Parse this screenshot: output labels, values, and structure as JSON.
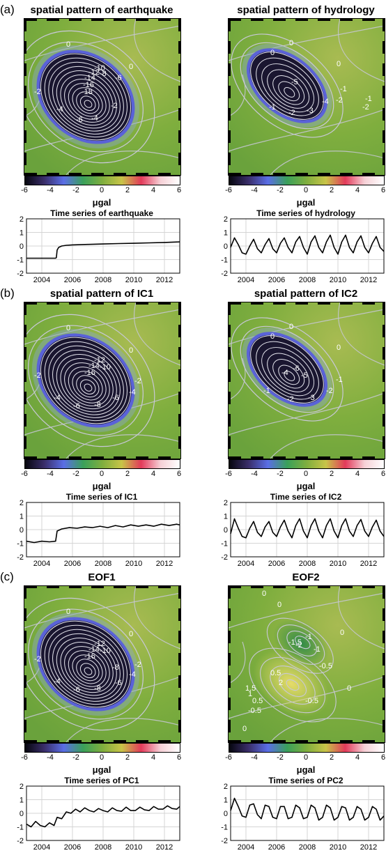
{
  "colors": {
    "map_background": "#7fae3e",
    "ellipse_core": "#1a1630",
    "ellipse_ring": "#5a62d8",
    "contour": "#c8c8d8",
    "eof2_low": "#2f8a48",
    "eof2_high": "#e6dc6a",
    "colorbar_stops": [
      "#06060e",
      "#3a2e6a",
      "#5a6ee6",
      "#3aa05a",
      "#7fae3e",
      "#c8c448",
      "#e23a5a",
      "#f6d0d6",
      "#ffffff"
    ]
  },
  "rows": [
    {
      "label": "(a)",
      "panels": [
        {
          "map_title": "spatial pattern of earthquake",
          "map_contour_labels": [
            "0",
            "0",
            "-2",
            "-4",
            "-6",
            "-4",
            "-2",
            "-16",
            "-14",
            "-18",
            "-12",
            "-10",
            "-8",
            "-6"
          ],
          "colorbar_unit": "μgal",
          "colorbar_ticks": [
            "-6",
            "-4",
            "-2",
            "0",
            "2",
            "4",
            "6"
          ],
          "chart_data": {
            "type": "line",
            "title": "Time series of earthquake",
            "xlim": [
              2003,
              2013
            ],
            "ylim": [
              -2,
              2
            ],
            "xticks": [
              "2004",
              "2006",
              "2008",
              "2010",
              "2012"
            ],
            "yticks": [
              "-2",
              "-1",
              "0",
              "1",
              "2"
            ],
            "grid": true,
            "x": [
              2003.0,
              2004.0,
              2004.9,
              2004.95,
              2005.0,
              2005.1,
              2005.3,
              2005.6,
              2006.0,
              2007.0,
              2008.0,
              2009.0,
              2010.0,
              2011.0,
              2012.0,
              2013.0
            ],
            "y": [
              -0.9,
              -0.9,
              -0.9,
              -0.85,
              -0.3,
              -0.1,
              0.0,
              0.05,
              0.08,
              0.12,
              0.15,
              0.18,
              0.2,
              0.23,
              0.26,
              0.3
            ]
          }
        },
        {
          "map_title": "spatial pattern of hydrology",
          "map_contour_labels": [
            "0",
            "0",
            "0",
            "-1",
            "-2",
            "-3",
            "-4",
            "-2",
            "-1",
            "-2",
            "-1",
            "-5"
          ],
          "colorbar_unit": "μgal",
          "colorbar_ticks": [
            "-6",
            "-4",
            "-2",
            "0",
            "2",
            "4",
            "6"
          ],
          "chart_data": {
            "type": "line",
            "title": "Time series of hydrology",
            "xlim": [
              2003,
              2013
            ],
            "ylim": [
              -2,
              2
            ],
            "xticks": [
              "2004",
              "2006",
              "2008",
              "2010",
              "2012"
            ],
            "yticks": [
              "-2",
              "-1",
              "0",
              "1",
              "2"
            ],
            "grid": true,
            "x": [
              2003.0,
              2003.25,
              2003.5,
              2003.75,
              2004.0,
              2004.25,
              2004.5,
              2004.75,
              2005.0,
              2005.25,
              2005.5,
              2005.75,
              2006.0,
              2006.25,
              2006.5,
              2006.75,
              2007.0,
              2007.25,
              2007.5,
              2007.75,
              2008.0,
              2008.25,
              2008.5,
              2008.75,
              2009.0,
              2009.25,
              2009.5,
              2009.75,
              2010.0,
              2010.25,
              2010.5,
              2010.75,
              2011.0,
              2011.25,
              2011.5,
              2011.75,
              2012.0,
              2012.25,
              2012.5,
              2012.75,
              2013.0
            ],
            "y": [
              -0.1,
              0.6,
              0.1,
              -0.5,
              -0.6,
              0.0,
              0.5,
              -0.2,
              -0.5,
              0.1,
              0.55,
              -0.2,
              -0.5,
              0.2,
              0.6,
              -0.1,
              -0.5,
              0.3,
              0.7,
              -0.1,
              -0.6,
              0.3,
              0.75,
              -0.1,
              -0.5,
              0.3,
              0.8,
              -0.1,
              -0.6,
              0.3,
              0.8,
              -0.1,
              -0.5,
              0.3,
              0.75,
              -0.1,
              -0.5,
              0.2,
              0.7,
              -0.1,
              -0.4
            ]
          }
        }
      ]
    },
    {
      "label": "(b)",
      "panels": [
        {
          "map_title": "spatial pattern of IC1",
          "map_contour_labels": [
            "0",
            "0",
            "-2",
            "-4",
            "-6",
            "-8",
            "-6",
            "-4",
            "-2",
            "-16",
            "-14",
            "-12",
            "-10"
          ],
          "colorbar_unit": "μgal",
          "colorbar_ticks": [
            "-6",
            "-4",
            "-2",
            "0",
            "2",
            "4",
            "6"
          ],
          "chart_data": {
            "type": "line",
            "title": "Time series of IC1",
            "xlim": [
              2003,
              2013
            ],
            "ylim": [
              -2,
              2
            ],
            "xticks": [
              "2004",
              "2006",
              "2008",
              "2010",
              "2012"
            ],
            "yticks": [
              "-2",
              "-1",
              "0",
              "1",
              "2"
            ],
            "grid": true,
            "x": [
              2003.0,
              2003.5,
              2004.0,
              2004.5,
              2004.9,
              2005.0,
              2005.3,
              2005.8,
              2006.3,
              2006.8,
              2007.3,
              2007.8,
              2008.3,
              2008.8,
              2009.3,
              2009.8,
              2010.3,
              2010.8,
              2011.3,
              2011.8,
              2012.3,
              2012.8,
              2013.0
            ],
            "y": [
              -0.85,
              -0.95,
              -0.85,
              -0.9,
              -0.85,
              -0.1,
              0.05,
              0.15,
              0.1,
              0.2,
              0.15,
              0.25,
              0.15,
              0.3,
              0.2,
              0.35,
              0.25,
              0.35,
              0.25,
              0.4,
              0.3,
              0.4,
              0.35
            ]
          }
        },
        {
          "map_title": "spatial pattern of IC2",
          "map_contour_labels": [
            "0",
            "0",
            "0",
            "-1",
            "-2",
            "-3",
            "-2",
            "-1",
            "-4",
            "-6",
            "-5"
          ],
          "colorbar_unit": "μgal",
          "colorbar_ticks": [
            "-6",
            "-4",
            "-2",
            "0",
            "2",
            "4",
            "6"
          ],
          "chart_data": {
            "type": "line",
            "title": "Time series of IC2",
            "xlim": [
              2003,
              2013
            ],
            "ylim": [
              -2,
              2
            ],
            "xticks": [
              "2004",
              "2006",
              "2008",
              "2010",
              "2012"
            ],
            "yticks": [
              "-2",
              "-1",
              "0",
              "1",
              "2"
            ],
            "grid": true,
            "x": [
              2003.0,
              2003.25,
              2003.5,
              2003.75,
              2004.0,
              2004.25,
              2004.5,
              2004.75,
              2005.0,
              2005.25,
              2005.5,
              2005.75,
              2006.0,
              2006.25,
              2006.5,
              2006.75,
              2007.0,
              2007.25,
              2007.5,
              2007.75,
              2008.0,
              2008.25,
              2008.5,
              2008.75,
              2009.0,
              2009.25,
              2009.5,
              2009.75,
              2010.0,
              2010.25,
              2010.5,
              2010.75,
              2011.0,
              2011.25,
              2011.5,
              2011.75,
              2012.0,
              2012.25,
              2012.5,
              2012.75,
              2013.0
            ],
            "y": [
              -0.3,
              0.8,
              0.1,
              -0.5,
              -0.6,
              0.1,
              0.6,
              -0.2,
              -0.5,
              0.2,
              0.6,
              -0.2,
              -0.5,
              0.2,
              0.7,
              -0.1,
              -0.6,
              0.3,
              0.8,
              -0.1,
              -0.6,
              0.3,
              0.8,
              -0.1,
              -0.6,
              0.3,
              0.8,
              -0.1,
              -0.6,
              0.3,
              0.8,
              -0.1,
              -0.5,
              0.3,
              0.75,
              -0.1,
              -0.5,
              0.2,
              0.7,
              -0.1,
              -0.5
            ]
          }
        }
      ]
    },
    {
      "label": "(c)",
      "panels": [
        {
          "map_title": "EOF1",
          "map_contour_labels": [
            "0",
            "0",
            "-2",
            "-4",
            "-6",
            "-8",
            "-6",
            "-4",
            "-2",
            "-16",
            "-14",
            "-12",
            "-10",
            "-8"
          ],
          "colorbar_unit": "μgal",
          "colorbar_ticks": [
            "-6",
            "-4",
            "-2",
            "0",
            "2",
            "4",
            "6"
          ],
          "chart_data": {
            "type": "line",
            "title": "Time series of PC1",
            "xlim": [
              2003,
              2013
            ],
            "ylim": [
              -2,
              2
            ],
            "xticks": [
              "2004",
              "2006",
              "2008",
              "2010",
              "2012"
            ],
            "yticks": [
              "-2",
              "-1",
              "0",
              "1",
              "2"
            ],
            "grid": true,
            "x": [
              2003.0,
              2003.3,
              2003.6,
              2003.9,
              2004.2,
              2004.5,
              2004.8,
              2005.0,
              2005.3,
              2005.6,
              2005.9,
              2006.2,
              2006.5,
              2006.8,
              2007.1,
              2007.4,
              2007.7,
              2008.0,
              2008.3,
              2008.6,
              2008.9,
              2009.2,
              2009.5,
              2009.8,
              2010.1,
              2010.4,
              2010.7,
              2011.0,
              2011.3,
              2011.6,
              2011.9,
              2012.2,
              2012.5,
              2012.8,
              2013.0
            ],
            "y": [
              -0.8,
              -1.0,
              -0.6,
              -0.9,
              -1.0,
              -0.7,
              -0.9,
              -0.3,
              -0.4,
              0.1,
              0.0,
              0.3,
              0.1,
              0.4,
              0.2,
              0.1,
              0.35,
              0.2,
              0.1,
              0.4,
              0.2,
              0.15,
              0.45,
              0.2,
              0.2,
              0.45,
              0.25,
              0.2,
              0.5,
              0.3,
              0.3,
              0.55,
              0.35,
              0.3,
              0.5
            ]
          }
        },
        {
          "map_title": "EOF2",
          "map_contour_labels": [
            "0",
            "0",
            "0",
            "0",
            "-1.5",
            "-1",
            "-2",
            "-1",
            "-0.5",
            "0.5",
            "2",
            "1.5",
            "1",
            "0.5",
            "-0.5",
            "-0.5",
            "0"
          ],
          "colorbar_unit": "μgal",
          "colorbar_ticks": [
            "-6",
            "-4",
            "-2",
            "0",
            "2",
            "4",
            "6"
          ],
          "chart_data": {
            "type": "line",
            "title": "Time series of PC2",
            "xlim": [
              2003,
              2013
            ],
            "ylim": [
              -2,
              2
            ],
            "xticks": [
              "2004",
              "2006",
              "2008",
              "2010",
              "2012"
            ],
            "yticks": [
              "-2",
              "-1",
              "0",
              "1",
              "2"
            ],
            "grid": true,
            "x": [
              2003.0,
              2003.25,
              2003.5,
              2003.75,
              2004.0,
              2004.25,
              2004.5,
              2004.75,
              2005.0,
              2005.25,
              2005.5,
              2005.75,
              2006.0,
              2006.25,
              2006.5,
              2006.75,
              2007.0,
              2007.25,
              2007.5,
              2007.75,
              2008.0,
              2008.25,
              2008.5,
              2008.75,
              2009.0,
              2009.25,
              2009.5,
              2009.75,
              2010.0,
              2010.25,
              2010.5,
              2010.75,
              2011.0,
              2011.25,
              2011.5,
              2011.75,
              2012.0,
              2012.25,
              2012.5,
              2012.75,
              2013.0
            ],
            "y": [
              0.2,
              1.1,
              0.5,
              -0.2,
              -0.3,
              0.6,
              0.7,
              -0.1,
              -0.4,
              0.6,
              0.5,
              -0.3,
              -0.4,
              0.5,
              0.5,
              -0.4,
              -0.3,
              0.6,
              0.4,
              -0.4,
              -0.3,
              0.6,
              0.4,
              -0.5,
              -0.3,
              0.6,
              0.4,
              -0.5,
              -0.3,
              0.5,
              0.4,
              -0.5,
              -0.3,
              0.5,
              0.3,
              -0.5,
              -0.3,
              0.5,
              0.3,
              -0.5,
              -0.2
            ]
          }
        }
      ]
    }
  ]
}
